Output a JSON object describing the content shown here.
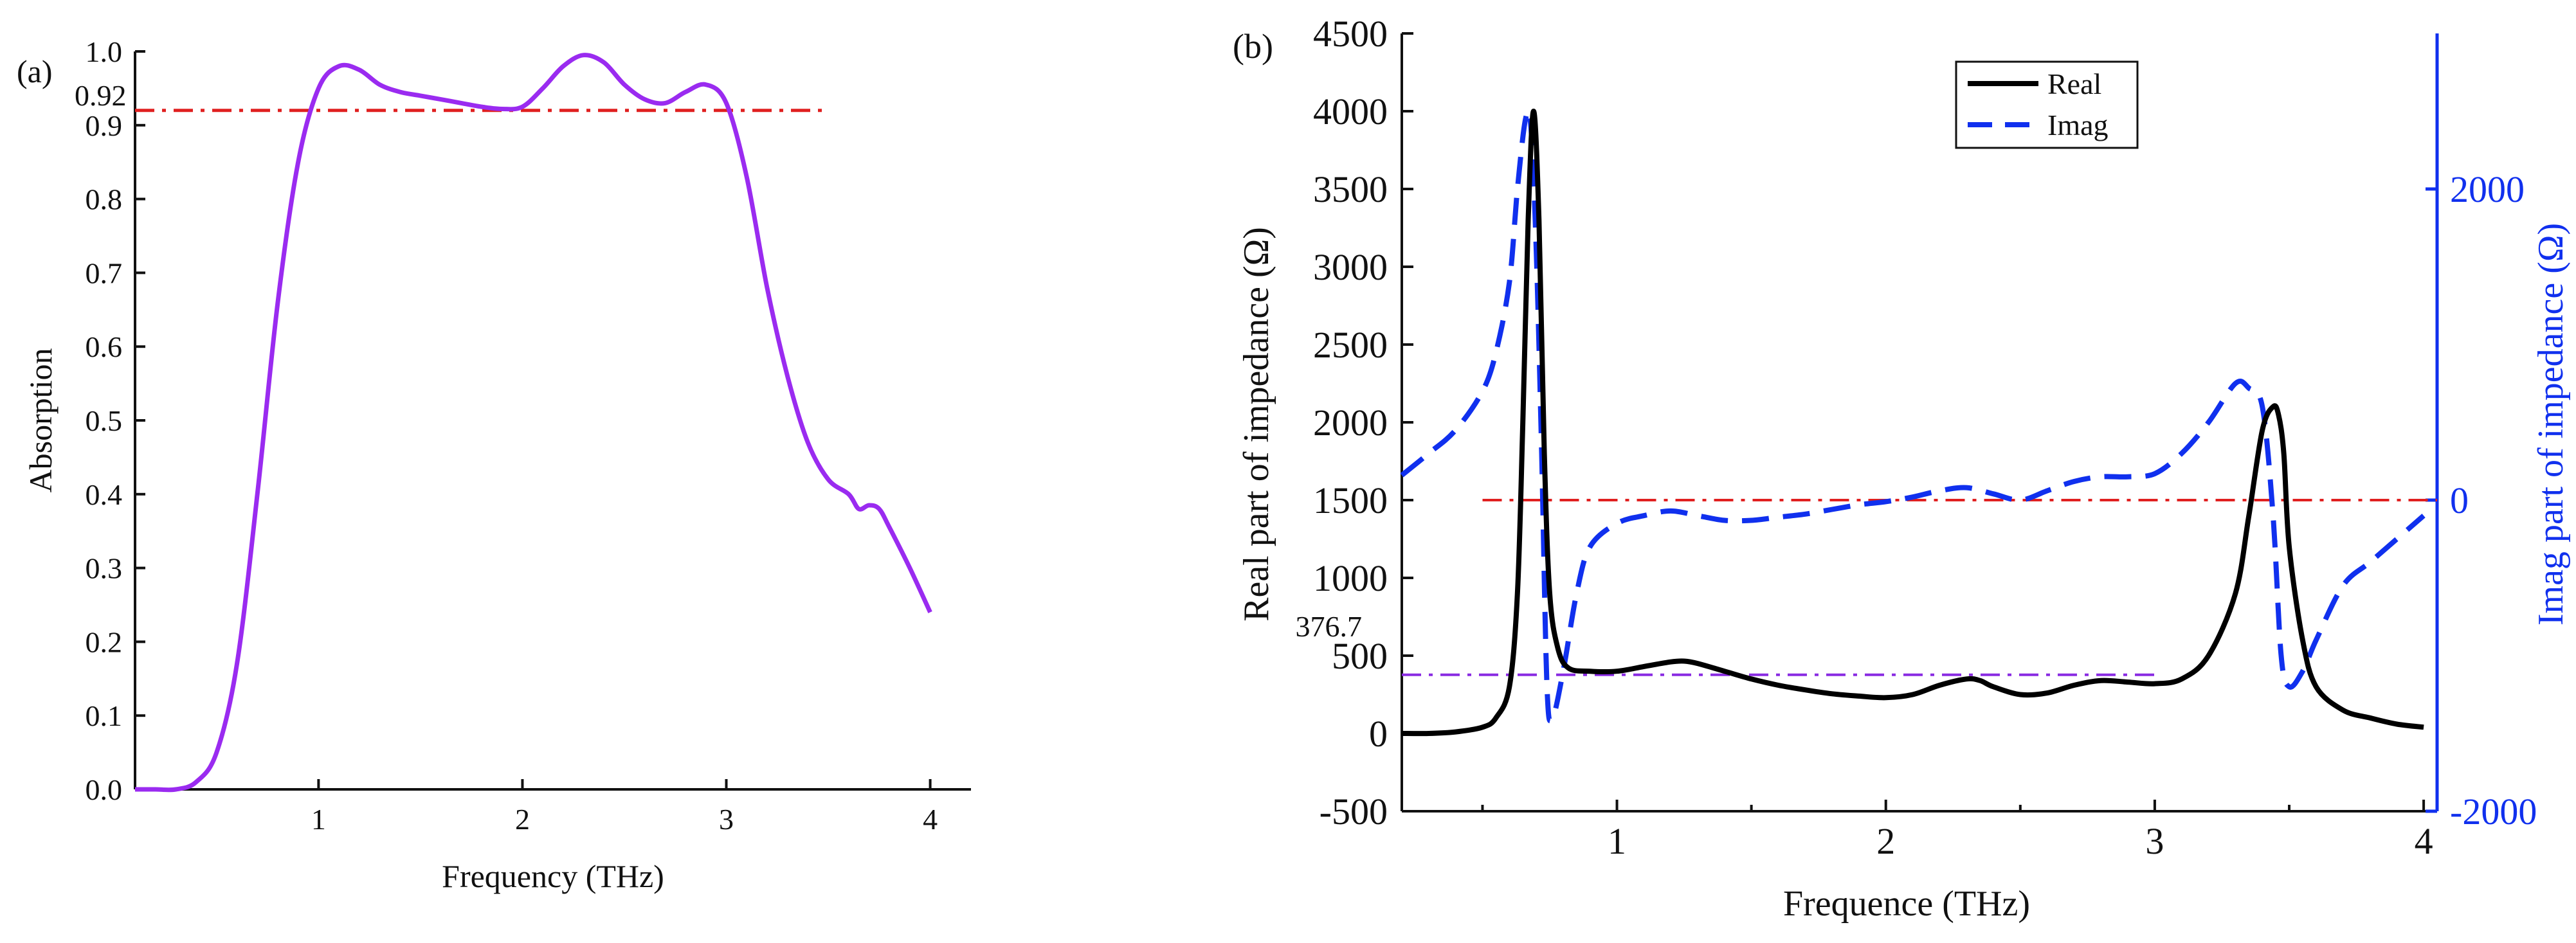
{
  "chart_data": [
    {
      "panel_label": "(a)",
      "type": "line",
      "xlabel": "Frequency (THz)",
      "ylabel": "Absorption",
      "xlim": [
        0.1,
        4.2
      ],
      "ylim": [
        0.0,
        1.0
      ],
      "x_ticks": [
        1,
        2,
        3,
        4
      ],
      "x_tick_labels": [
        "1",
        "2",
        "3",
        "4"
      ],
      "y_ticks": [
        0.0,
        0.1,
        0.2,
        0.3,
        0.4,
        0.5,
        0.6,
        0.7,
        0.8,
        0.9,
        1.0
      ],
      "y_tick_labels": [
        "0.0",
        "0.1",
        "0.2",
        "0.3",
        "0.4",
        "0.5",
        "0.6",
        "0.7",
        "0.8",
        "0.9",
        "1.0"
      ],
      "series": [
        {
          "name": "Absorption",
          "color": "#9a2bf0",
          "style": "solid",
          "x": [
            0.1,
            0.2,
            0.3,
            0.4,
            0.5,
            0.6,
            0.7,
            0.8,
            0.9,
            1.0,
            1.1,
            1.2,
            1.3,
            1.4,
            1.5,
            1.6,
            1.7,
            1.8,
            1.9,
            2.0,
            2.1,
            2.2,
            2.3,
            2.4,
            2.5,
            2.6,
            2.7,
            2.8,
            2.9,
            3.0,
            3.1,
            3.2,
            3.3,
            3.4,
            3.5,
            3.6,
            3.65,
            3.7,
            3.75,
            3.8,
            3.9,
            4.0
          ],
          "y": [
            0.0,
            0.0,
            0.0,
            0.01,
            0.05,
            0.17,
            0.4,
            0.66,
            0.85,
            0.95,
            0.98,
            0.975,
            0.955,
            0.945,
            0.94,
            0.935,
            0.93,
            0.925,
            0.922,
            0.925,
            0.95,
            0.98,
            0.995,
            0.985,
            0.955,
            0.935,
            0.93,
            0.945,
            0.955,
            0.93,
            0.83,
            0.68,
            0.56,
            0.47,
            0.42,
            0.4,
            0.38,
            0.385,
            0.38,
            0.355,
            0.3,
            0.24
          ]
        },
        {
          "name": "0.92 level",
          "color": "#e02020",
          "style": "dash-dot",
          "x": [
            0.1,
            3.5
          ],
          "y": [
            0.92,
            0.92
          ]
        }
      ],
      "annotations": [
        {
          "text": "0.92",
          "x": 0.1,
          "y": 0.92
        }
      ]
    },
    {
      "panel_label": "(b)",
      "type": "line",
      "xlabel": "Frequence (THz)",
      "ylabel": "Real part of impedance (Ω)",
      "ylabel_right": "Imag part of impedance (Ω)",
      "xlim": [
        0.2,
        4.05
      ],
      "ylim": [
        -500,
        4500
      ],
      "ylim_right": [
        -2000,
        3000
      ],
      "x_ticks": [
        1,
        2,
        3,
        4
      ],
      "x_tick_labels": [
        "1",
        "2",
        "3",
        "4"
      ],
      "y_ticks": [
        -500,
        0,
        500,
        1000,
        1500,
        2000,
        2500,
        3000,
        3500,
        4000,
        4500
      ],
      "y_tick_labels": [
        "-500",
        "0",
        "500",
        "1000",
        "1500",
        "2000",
        "2500",
        "3000",
        "3500",
        "4000",
        "4500"
      ],
      "y_right_ticks": [
        -2000,
        0,
        2000
      ],
      "y_right_tick_labels": [
        "-2000",
        "0",
        "2000"
      ],
      "legend": {
        "position": "top-center",
        "entries": [
          "Real",
          "Imag"
        ]
      },
      "series": [
        {
          "name": "Real",
          "axis": "left",
          "color": "#000000",
          "style": "solid",
          "x": [
            0.2,
            0.3,
            0.4,
            0.5,
            0.55,
            0.6,
            0.63,
            0.65,
            0.67,
            0.69,
            0.71,
            0.73,
            0.75,
            0.78,
            0.82,
            0.9,
            1.0,
            1.1,
            1.2,
            1.25,
            1.3,
            1.4,
            1.5,
            1.6,
            1.7,
            1.8,
            1.9,
            2.0,
            2.1,
            2.2,
            2.3,
            2.35,
            2.4,
            2.5,
            2.6,
            2.7,
            2.8,
            2.9,
            3.0,
            3.1,
            3.2,
            3.3,
            3.35,
            3.4,
            3.44,
            3.46,
            3.48,
            3.5,
            3.55,
            3.6,
            3.7,
            3.8,
            3.9,
            4.0
          ],
          "y": [
            0,
            0,
            10,
            40,
            100,
            300,
            900,
            2000,
            3300,
            4000,
            3300,
            1800,
            900,
            550,
            420,
            400,
            400,
            430,
            460,
            465,
            450,
            400,
            350,
            310,
            280,
            255,
            240,
            230,
            250,
            310,
            350,
            340,
            300,
            250,
            260,
            310,
            340,
            330,
            320,
            350,
            500,
            900,
            1400,
            1950,
            2100,
            2050,
            1800,
            1200,
            600,
            300,
            150,
            100,
            60,
            40
          ]
        },
        {
          "name": "Imag",
          "axis": "right",
          "color": "#1030ee",
          "style": "dashed",
          "x": [
            0.2,
            0.3,
            0.4,
            0.5,
            0.55,
            0.6,
            0.63,
            0.66,
            0.68,
            0.7,
            0.72,
            0.74,
            0.76,
            0.8,
            0.85,
            0.9,
            1.0,
            1.1,
            1.2,
            1.3,
            1.4,
            1.5,
            1.6,
            1.7,
            1.8,
            1.9,
            2.0,
            2.1,
            2.2,
            2.3,
            2.4,
            2.5,
            2.6,
            2.7,
            2.8,
            2.9,
            3.0,
            3.1,
            3.2,
            3.3,
            3.35,
            3.4,
            3.44,
            3.47,
            3.5,
            3.55,
            3.6,
            3.7,
            3.8,
            3.9,
            4.0
          ],
          "y": [
            160,
            300,
            450,
            700,
            950,
            1400,
            2000,
            2450,
            2400,
            1600,
            300,
            -1200,
            -1400,
            -1100,
            -600,
            -300,
            -150,
            -100,
            -70,
            -100,
            -130,
            -130,
            -110,
            -90,
            -60,
            -30,
            -10,
            20,
            60,
            80,
            40,
            0,
            60,
            120,
            150,
            150,
            170,
            300,
            500,
            750,
            720,
            600,
            -100,
            -1000,
            -1200,
            -1100,
            -900,
            -550,
            -400,
            -250,
            -100
          ]
        },
        {
          "name": "0 reference",
          "axis": "right",
          "color": "#e02020",
          "style": "dash-dot",
          "x": [
            0.5,
            4.05
          ],
          "y": [
            0,
            0
          ]
        },
        {
          "name": "376.7 reference",
          "axis": "left",
          "color": "#8a2be2",
          "style": "dash-dot",
          "x": [
            0.2,
            3.0
          ],
          "y": [
            376.7,
            376.7
          ]
        }
      ],
      "annotations": [
        {
          "text": "376.7",
          "x": 0.2,
          "y": 376.7
        }
      ]
    }
  ]
}
